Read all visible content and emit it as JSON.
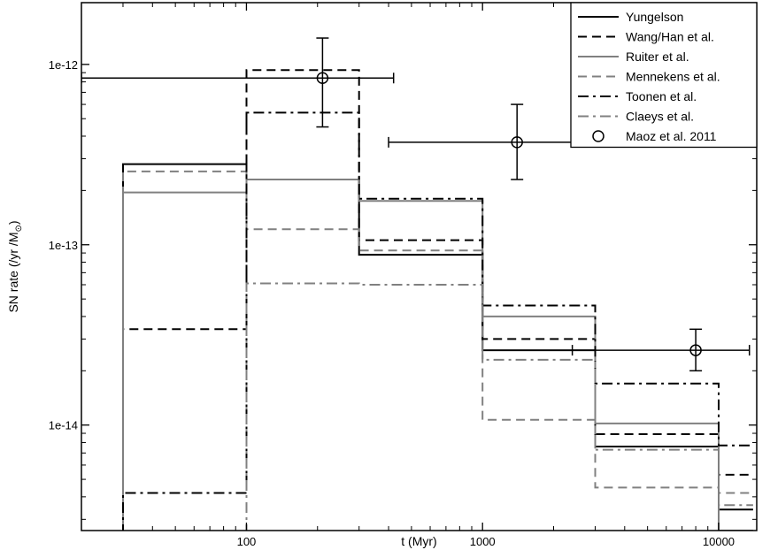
{
  "chart_data": {
    "type": "line",
    "xlabel": "t (Myr)",
    "ylabel": "SN rate (/yr /M",
    "ylabel_sub": "⊙",
    "ylabel_close": ")",
    "xscale": "log",
    "yscale": "log",
    "xlim": [
      20,
      14500
    ],
    "ylim": [
      2.6e-15,
      2.2e-12
    ],
    "x_ticks": [
      {
        "value": 100,
        "label": "100"
      },
      {
        "value": 1000,
        "label": "1000"
      },
      {
        "value": 10000,
        "label": "10000"
      }
    ],
    "y_ticks": [
      {
        "value": 1e-14,
        "label": "1e-14"
      },
      {
        "value": 1e-13,
        "label": "1e-13"
      },
      {
        "value": 1e-12,
        "label": "1e-12"
      }
    ],
    "legend_position": "top-right",
    "bin_edges": [
      30,
      100,
      300,
      1000,
      3000,
      10000,
      14000
    ],
    "series": [
      {
        "name": "Yungelson",
        "color": "#000000",
        "dash": "solid",
        "values": [
          2.8e-13,
          2.3e-13,
          8.8e-14,
          2.6e-14,
          7.6e-15,
          3.4e-15
        ]
      },
      {
        "name": "Wang/Han et al.",
        "color": "#000000",
        "dash": "dash",
        "values": [
          3.4e-14,
          9.3e-13,
          1.06e-13,
          3e-14,
          8.9e-15,
          5.3e-15
        ]
      },
      {
        "name": "Ruiter et al.",
        "color": "#808080",
        "dash": "solid",
        "values": [
          1.95e-13,
          2.3e-13,
          1.75e-13,
          4e-14,
          1.02e-14,
          2.6e-15
        ]
      },
      {
        "name": "Mennekens et al.",
        "color": "#808080",
        "dash": "dash",
        "values": [
          2.55e-13,
          1.22e-13,
          9.3e-14,
          1.07e-14,
          4.5e-15,
          4.2e-15
        ]
      },
      {
        "name": "Toonen et al.",
        "color": "#000000",
        "dash": "dashdot",
        "values": [
          4.2e-15,
          5.4e-13,
          1.8e-13,
          4.6e-14,
          1.7e-14,
          7.7e-15
        ]
      },
      {
        "name": "Claeys et al.",
        "color": "#808080",
        "dash": "dashdot",
        "values": [
          null,
          6.1e-14,
          6e-14,
          2.3e-14,
          7.3e-15,
          3.6e-15
        ]
      }
    ],
    "observations": {
      "name": "Maoz et al. 2011",
      "points": [
        {
          "x": 210,
          "y": 8.4e-13,
          "xerr": [
            20,
            420
          ],
          "yerr": [
            4.5e-13,
            1.4e-12
          ]
        },
        {
          "x": 1400,
          "y": 3.7e-13,
          "xerr": [
            400,
            2400
          ],
          "yerr": [
            2.3e-13,
            6e-13
          ]
        },
        {
          "x": 8000,
          "y": 2.6e-14,
          "xerr": [
            2400,
            13500
          ],
          "yerr": [
            2e-14,
            3.4e-14
          ]
        }
      ]
    }
  }
}
